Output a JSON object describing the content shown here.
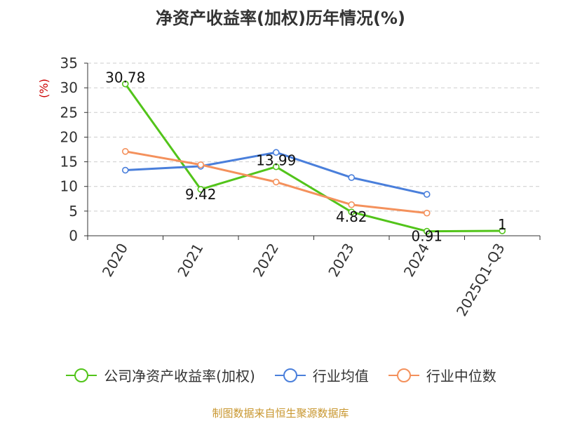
{
  "title": "净资产收益率(加权)历年情况(%)",
  "source_note": "制图数据来自恒生聚源数据库",
  "chart_data": {
    "type": "line",
    "title": "净资产收益率(加权)历年情况(%)",
    "ylabel": "(%)",
    "ylabel_color": "#cc0000",
    "ylim": [
      0,
      35
    ],
    "yticks": [
      "0",
      "5",
      "10",
      "15",
      "20",
      "25",
      "30",
      "35"
    ],
    "grid": true,
    "legend_position": "bottom",
    "categories": [
      "2020",
      "2021",
      "2022",
      "2023",
      "2024",
      "2025Q1-Q3"
    ],
    "series": [
      {
        "name": "公司净资产收益率(加权)",
        "color": "#52c41a",
        "values": [
          30.78,
          9.42,
          13.99,
          4.82,
          0.91,
          1
        ],
        "labels": [
          "30.78",
          "9.42",
          "13.99",
          "4.82",
          "0.91",
          "1"
        ]
      },
      {
        "name": "行业均值",
        "color": "#4a7fdb",
        "values": [
          13.3,
          14.1,
          16.9,
          11.8,
          8.4,
          null
        ],
        "labels": []
      },
      {
        "name": "行业中位数",
        "color": "#f4915c",
        "values": [
          17.1,
          14.4,
          10.9,
          6.3,
          4.6,
          null
        ],
        "labels": []
      }
    ]
  }
}
